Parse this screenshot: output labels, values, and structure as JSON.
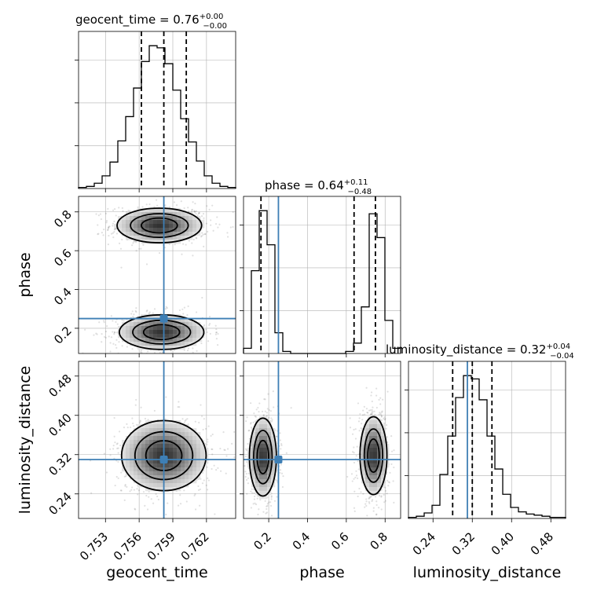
{
  "figure": {
    "type": "corner_plot",
    "parameters": [
      "geocent_time",
      "phase",
      "luminosity_distance"
    ],
    "axis_labels": {
      "geocent_time": "geocent_time",
      "phase": "phase",
      "luminosity_distance": "luminosity_distance"
    },
    "colors": {
      "truth": "#3e7fb5",
      "contour": "#000000",
      "hist": "#000000"
    }
  },
  "titles": {
    "geocent_time": {
      "main": "geocent_time = 0.76",
      "sup": "+0.00",
      "sub": "−0.00"
    },
    "phase": {
      "main": "phase = 0.64",
      "sup": "+0.11",
      "sub": "−0.48"
    },
    "luminosity_distance": {
      "main": "luminosity_distance = 0.32",
      "sup": "+0.04",
      "sub": "−0.04"
    }
  },
  "tick_labels": {
    "geocent_time": [
      "0.753",
      "0.756",
      "0.759",
      "0.762"
    ],
    "phase": [
      "0.2",
      "0.4",
      "0.6",
      "0.8"
    ],
    "luminosity_distance": [
      "0.24",
      "0.32",
      "0.40",
      "0.48"
    ]
  },
  "chart_data": {
    "type": "corner",
    "grid": true,
    "truth": {
      "geocent_time": 0.7582,
      "phase": 0.25,
      "luminosity_distance": 0.31
    },
    "ranges": {
      "geocent_time": [
        0.7506,
        0.7646
      ],
      "phase": [
        0.07,
        0.88
      ],
      "luminosity_distance": [
        0.19,
        0.51
      ]
    },
    "marginals": {
      "geocent_time": {
        "bin_edges": [
          0.7506,
          0.7513,
          0.752,
          0.7527,
          0.7534,
          0.7541,
          0.7548,
          0.7555,
          0.7562,
          0.7569,
          0.7576,
          0.7583,
          0.759,
          0.7597,
          0.7604,
          0.7611,
          0.7618,
          0.7625,
          0.7632,
          0.7639,
          0.7646
        ],
        "counts": [
          1,
          2,
          5,
          12,
          25,
          45,
          68,
          95,
          120,
          135,
          133,
          118,
          93,
          66,
          44,
          26,
          12,
          5,
          2,
          1
        ],
        "quantiles": [
          0.7562,
          0.7582,
          0.7602
        ]
      },
      "phase": {
        "bin_edges": [
          0.07,
          0.1105,
          0.151,
          0.1915,
          0.232,
          0.2725,
          0.313,
          0.3535,
          0.394,
          0.4345,
          0.475,
          0.5155,
          0.556,
          0.5965,
          0.637,
          0.6775,
          0.718,
          0.7585,
          0.799,
          0.8395,
          0.88
        ],
        "counts": [
          5,
          80,
          138,
          105,
          20,
          2,
          0,
          0,
          0,
          0,
          0,
          0,
          0,
          2,
          10,
          45,
          135,
          112,
          32,
          5
        ],
        "quantiles": [
          0.16,
          0.64,
          0.75
        ]
      },
      "luminosity_distance": {
        "bin_edges": [
          0.19,
          0.206,
          0.222,
          0.238,
          0.254,
          0.27,
          0.286,
          0.302,
          0.318,
          0.334,
          0.35,
          0.366,
          0.382,
          0.398,
          0.414,
          0.43,
          0.446,
          0.462,
          0.478,
          0.494,
          0.51
        ],
        "counts": [
          1,
          2,
          5,
          12,
          40,
          75,
          110,
          130,
          127,
          108,
          75,
          45,
          22,
          10,
          6,
          4,
          3,
          2,
          1,
          1
        ],
        "quantiles": [
          0.28,
          0.32,
          0.36
        ]
      }
    },
    "joint": [
      {
        "x": "geocent_time",
        "y": "phase",
        "components": [
          {
            "x": 0.7578,
            "y": 0.73,
            "sx": 0.0019,
            "sy": 0.045,
            "w": 1.0
          },
          {
            "x": 0.758,
            "y": 0.18,
            "sx": 0.0019,
            "sy": 0.045,
            "w": 1.0
          }
        ],
        "levels": [
          0.14,
          0.4,
          0.7
        ]
      },
      {
        "x": "geocent_time",
        "y": "luminosity_distance",
        "components": [
          {
            "x": 0.7582,
            "y": 0.318,
            "sx": 0.0019,
            "sy": 0.036,
            "w": 1.0
          }
        ],
        "levels": [
          0.14,
          0.4,
          0.7
        ]
      },
      {
        "x": "phase",
        "y": "luminosity_distance",
        "components": [
          {
            "x": 0.17,
            "y": 0.315,
            "sx": 0.035,
            "sy": 0.04,
            "w": 1.0
          },
          {
            "x": 0.74,
            "y": 0.318,
            "sx": 0.035,
            "sy": 0.04,
            "w": 1.0
          }
        ],
        "levels": [
          0.14,
          0.4,
          0.7
        ]
      }
    ]
  }
}
